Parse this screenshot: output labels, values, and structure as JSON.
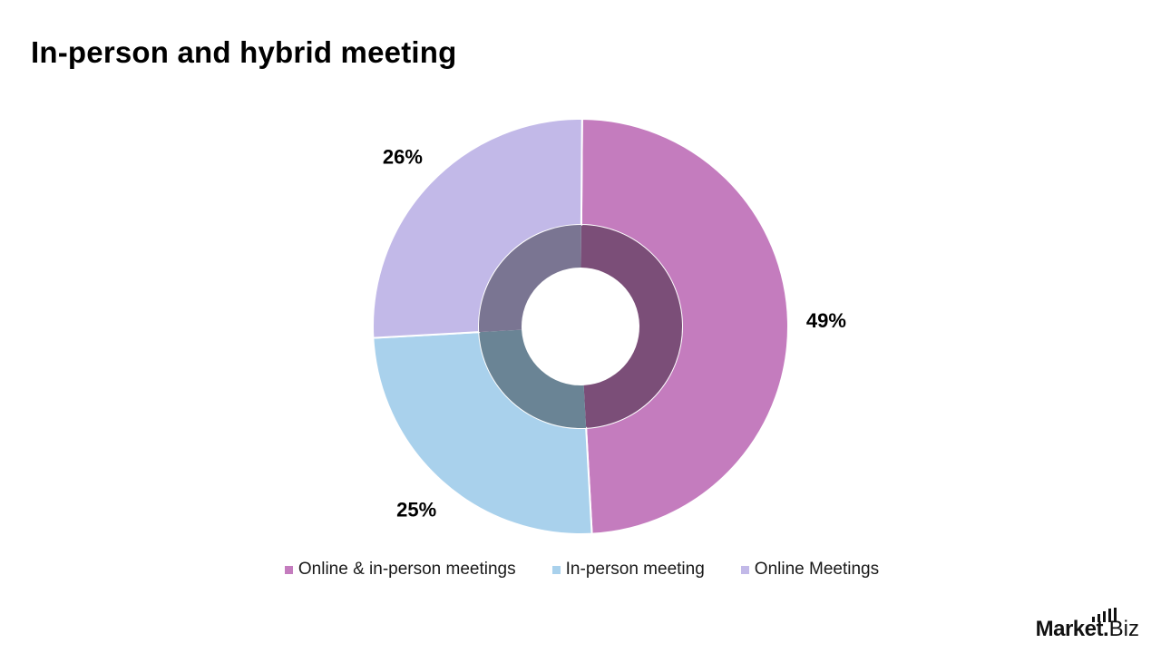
{
  "chart_data": {
    "type": "pie",
    "title": "In-person and hybrid meeting",
    "categories": [
      "Online & in-person meetings",
      "In-person meeting",
      "Online Meetings"
    ],
    "values": [
      49,
      25,
      26
    ],
    "data_labels": [
      "49%",
      "25%",
      "26%"
    ],
    "colors": [
      "#c47cbe",
      "#a9d1ec",
      "#c2b9e8"
    ],
    "legend_position": "bottom",
    "donut": true
  },
  "logo": {
    "market": "Market",
    "dot": ".",
    "biz": "Biz"
  }
}
